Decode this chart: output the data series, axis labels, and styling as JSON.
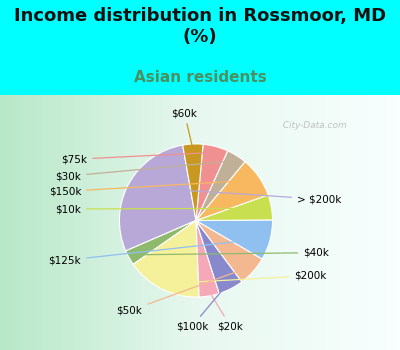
{
  "title": "Income distribution in Rossmoor, MD\n(%)",
  "subtitle": "Asian residents",
  "bg_color": "#00FFFF",
  "chart_bg_top": "#e8f7f0",
  "chart_bg_bottom": "#c8ebd8",
  "labels": [
    "> $200k",
    "$40k",
    "$200k",
    "$20k",
    "$100k",
    "$50k",
    "$125k",
    "$10k",
    "$150k",
    "$30k",
    "$75k",
    "$60k"
  ],
  "sizes": [
    27,
    3,
    15,
    4,
    5,
    6,
    8,
    5,
    8,
    4,
    5,
    4
  ],
  "colors": [
    "#b8a8d8",
    "#8fba6e",
    "#f5f09a",
    "#f4a8b8",
    "#8888cc",
    "#f4b890",
    "#90c0f0",
    "#c8e050",
    "#f8b860",
    "#c0b098",
    "#f09090",
    "#c89820"
  ],
  "startangle": 100,
  "title_fontsize": 13,
  "subtitle_fontsize": 11,
  "subtitle_color": "#4a9060",
  "watermark": "  City-Data.com"
}
